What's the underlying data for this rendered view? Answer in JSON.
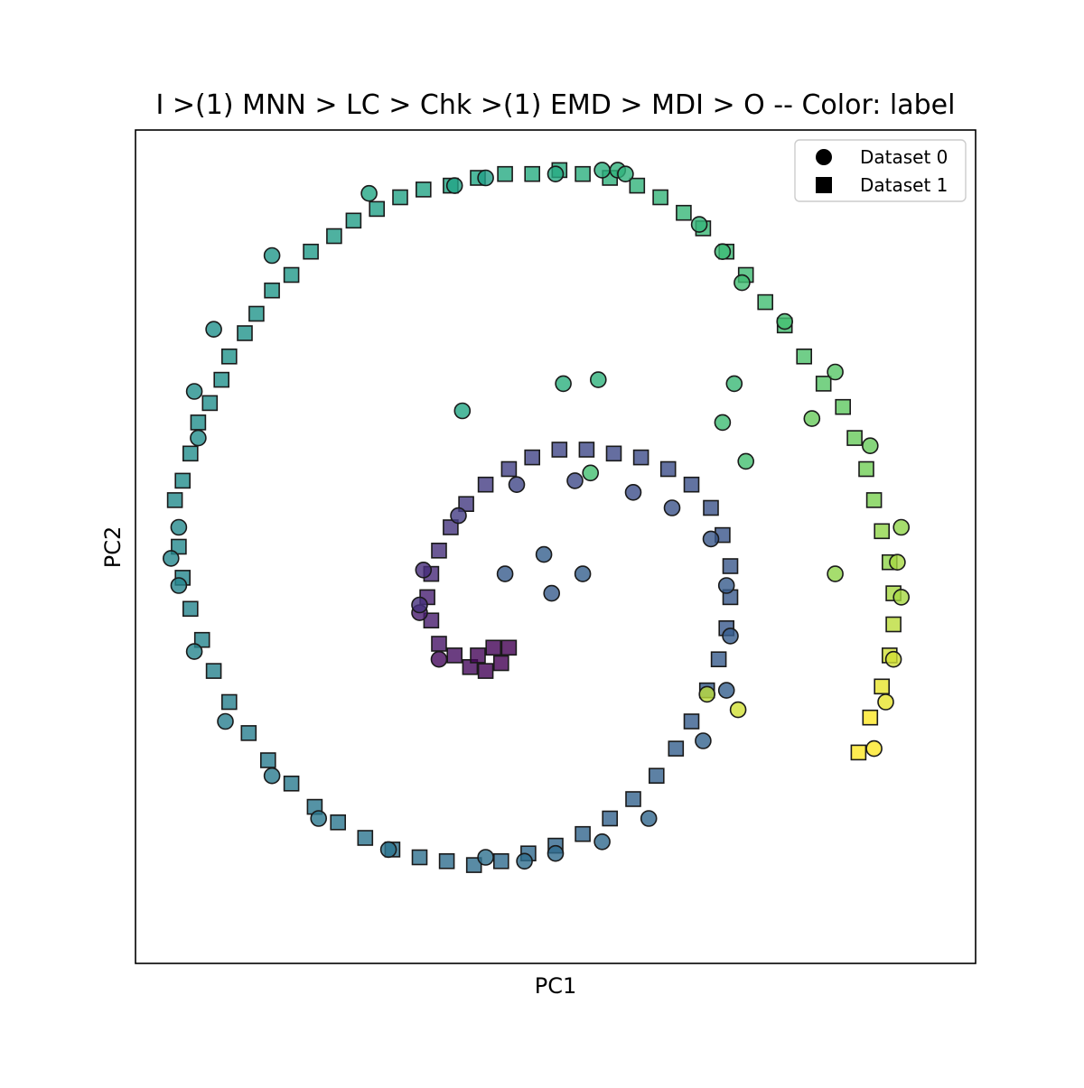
{
  "chart_data": {
    "type": "scatter",
    "title": "I >(1) MNN > LC > Chk >(1) EMD > MDI > O -- Color: label",
    "xlabel": "PC1",
    "ylabel": "PC2",
    "xlim": [
      -1.0,
      1.0
    ],
    "ylim": [
      -1.0,
      1.0
    ],
    "grid": false,
    "ticks": "none",
    "legend_position": "top-right",
    "colormap": "viridis",
    "color_by": "label",
    "marker_edge_color": "#1a1a1a",
    "marker_alpha": 0.8,
    "series": [
      {
        "name": "Dataset 0",
        "marker": "circle",
        "points": [
          [
            -0.48,
            0.91,
            0.74
          ],
          [
            -0.26,
            0.93,
            0.72
          ],
          [
            -0.18,
            0.95,
            0.7
          ],
          [
            0.0,
            0.96,
            0.76
          ],
          [
            0.12,
            0.97,
            0.79
          ],
          [
            0.16,
            0.97,
            0.8
          ],
          [
            0.18,
            0.96,
            0.8
          ],
          [
            0.37,
            0.83,
            0.82
          ],
          [
            0.43,
            0.76,
            0.85
          ],
          [
            0.48,
            0.68,
            0.87
          ],
          [
            0.59,
            0.58,
            0.88
          ],
          [
            0.72,
            0.45,
            0.9
          ],
          [
            0.81,
            0.26,
            0.92
          ],
          [
            0.89,
            0.05,
            0.95
          ],
          [
            0.88,
            -0.04,
            0.96
          ],
          [
            0.89,
            -0.13,
            0.96
          ],
          [
            0.87,
            -0.29,
            0.98
          ],
          [
            0.85,
            -0.4,
            0.99
          ],
          [
            0.82,
            -0.52,
            1.0
          ],
          [
            -0.73,
            0.75,
            0.66
          ],
          [
            -0.88,
            0.56,
            0.63
          ],
          [
            -0.93,
            0.4,
            0.62
          ],
          [
            -0.92,
            0.28,
            0.61
          ],
          [
            -0.97,
            0.05,
            0.59
          ],
          [
            -0.99,
            -0.03,
            0.58
          ],
          [
            -0.97,
            -0.1,
            0.57
          ],
          [
            -0.93,
            -0.27,
            0.56
          ],
          [
            -0.85,
            -0.45,
            0.53
          ],
          [
            -0.73,
            -0.59,
            0.51
          ],
          [
            -0.61,
            -0.7,
            0.5
          ],
          [
            -0.43,
            -0.78,
            0.48
          ],
          [
            -0.18,
            -0.8,
            0.46
          ],
          [
            -0.08,
            -0.81,
            0.45
          ],
          [
            0.0,
            -0.79,
            0.44
          ],
          [
            0.12,
            -0.76,
            0.43
          ],
          [
            0.24,
            -0.7,
            0.42
          ],
          [
            0.38,
            -0.5,
            0.4
          ],
          [
            0.44,
            -0.37,
            0.38
          ],
          [
            0.45,
            -0.23,
            0.37
          ],
          [
            0.44,
            -0.1,
            0.36
          ],
          [
            0.4,
            0.02,
            0.34
          ],
          [
            0.3,
            0.1,
            0.32
          ],
          [
            0.2,
            0.14,
            0.3
          ],
          [
            0.05,
            0.17,
            0.28
          ],
          [
            -0.1,
            0.16,
            0.26
          ],
          [
            -0.25,
            0.08,
            0.22
          ],
          [
            -0.34,
            -0.06,
            0.16
          ],
          [
            -0.35,
            -0.17,
            0.1
          ],
          [
            -0.3,
            -0.29,
            0.03
          ],
          [
            -0.24,
            0.35,
            0.74
          ],
          [
            0.02,
            0.42,
            0.79
          ],
          [
            0.11,
            0.43,
            0.8
          ],
          [
            0.46,
            0.42,
            0.84
          ],
          [
            0.43,
            0.32,
            0.86
          ],
          [
            0.49,
            0.22,
            0.88
          ],
          [
            0.66,
            0.33,
            0.92
          ],
          [
            0.72,
            -0.07,
            0.95
          ],
          [
            0.39,
            -0.38,
            0.97
          ],
          [
            0.47,
            -0.42,
            0.98
          ],
          [
            0.09,
            0.19,
            0.88
          ],
          [
            -0.13,
            -0.07,
            0.36
          ],
          [
            -0.03,
            -0.02,
            0.38
          ],
          [
            -0.01,
            -0.12,
            0.36
          ],
          [
            0.07,
            -0.07,
            0.38
          ],
          [
            -0.35,
            -0.15,
            0.18
          ]
        ]
      },
      {
        "name": "Dataset 1",
        "marker": "square",
        "points": [
          [
            -0.98,
            0.12,
            0.6
          ],
          [
            -0.96,
            0.17,
            0.61
          ],
          [
            -0.94,
            0.24,
            0.61
          ],
          [
            -0.92,
            0.32,
            0.62
          ],
          [
            -0.89,
            0.37,
            0.62
          ],
          [
            -0.86,
            0.43,
            0.63
          ],
          [
            -0.84,
            0.49,
            0.64
          ],
          [
            -0.8,
            0.55,
            0.64
          ],
          [
            -0.77,
            0.6,
            0.65
          ],
          [
            -0.73,
            0.66,
            0.66
          ],
          [
            -0.68,
            0.7,
            0.67
          ],
          [
            -0.63,
            0.76,
            0.68
          ],
          [
            -0.57,
            0.8,
            0.69
          ],
          [
            -0.52,
            0.84,
            0.7
          ],
          [
            -0.46,
            0.87,
            0.71
          ],
          [
            -0.4,
            0.9,
            0.72
          ],
          [
            -0.34,
            0.92,
            0.73
          ],
          [
            -0.27,
            0.93,
            0.74
          ],
          [
            -0.2,
            0.95,
            0.75
          ],
          [
            -0.13,
            0.96,
            0.76
          ],
          [
            -0.06,
            0.96,
            0.77
          ],
          [
            0.01,
            0.97,
            0.78
          ],
          [
            0.07,
            0.96,
            0.79
          ],
          [
            0.14,
            0.95,
            0.8
          ],
          [
            0.21,
            0.93,
            0.81
          ],
          [
            0.27,
            0.9,
            0.82
          ],
          [
            0.33,
            0.86,
            0.83
          ],
          [
            0.38,
            0.82,
            0.84
          ],
          [
            0.44,
            0.76,
            0.85
          ],
          [
            0.49,
            0.7,
            0.86
          ],
          [
            0.54,
            0.63,
            0.87
          ],
          [
            0.59,
            0.57,
            0.88
          ],
          [
            0.64,
            0.49,
            0.89
          ],
          [
            0.69,
            0.42,
            0.9
          ],
          [
            0.74,
            0.36,
            0.91
          ],
          [
            0.77,
            0.28,
            0.92
          ],
          [
            0.8,
            0.2,
            0.93
          ],
          [
            0.82,
            0.12,
            0.94
          ],
          [
            0.84,
            0.04,
            0.95
          ],
          [
            0.86,
            -0.04,
            0.95
          ],
          [
            0.87,
            -0.12,
            0.96
          ],
          [
            0.87,
            -0.2,
            0.97
          ],
          [
            0.86,
            -0.28,
            0.98
          ],
          [
            0.84,
            -0.36,
            0.99
          ],
          [
            0.81,
            -0.44,
            1.0
          ],
          [
            0.78,
            -0.53,
            1.0
          ],
          [
            -0.97,
            0.0,
            0.59
          ],
          [
            -0.96,
            -0.08,
            0.58
          ],
          [
            -0.94,
            -0.16,
            0.57
          ],
          [
            -0.91,
            -0.24,
            0.56
          ],
          [
            -0.88,
            -0.32,
            0.55
          ],
          [
            -0.84,
            -0.4,
            0.54
          ],
          [
            -0.79,
            -0.48,
            0.53
          ],
          [
            -0.74,
            -0.55,
            0.52
          ],
          [
            -0.68,
            -0.61,
            0.51
          ],
          [
            -0.62,
            -0.67,
            0.5
          ],
          [
            -0.56,
            -0.71,
            0.49
          ],
          [
            -0.49,
            -0.75,
            0.48
          ],
          [
            -0.42,
            -0.78,
            0.47
          ],
          [
            -0.35,
            -0.8,
            0.46
          ],
          [
            -0.28,
            -0.81,
            0.45
          ],
          [
            -0.21,
            -0.82,
            0.45
          ],
          [
            -0.14,
            -0.81,
            0.44
          ],
          [
            -0.07,
            -0.79,
            0.43
          ],
          [
            0.0,
            -0.77,
            0.42
          ],
          [
            0.07,
            -0.74,
            0.41
          ],
          [
            0.14,
            -0.7,
            0.4
          ],
          [
            0.2,
            -0.65,
            0.4
          ],
          [
            0.26,
            -0.59,
            0.39
          ],
          [
            0.31,
            -0.52,
            0.38
          ],
          [
            0.35,
            -0.45,
            0.37
          ],
          [
            0.39,
            -0.37,
            0.37
          ],
          [
            0.42,
            -0.29,
            0.36
          ],
          [
            0.44,
            -0.21,
            0.35
          ],
          [
            0.45,
            -0.13,
            0.35
          ],
          [
            0.45,
            -0.05,
            0.34
          ],
          [
            0.43,
            0.03,
            0.33
          ],
          [
            0.4,
            0.1,
            0.32
          ],
          [
            0.35,
            0.16,
            0.31
          ],
          [
            0.29,
            0.2,
            0.3
          ],
          [
            0.22,
            0.23,
            0.29
          ],
          [
            0.15,
            0.24,
            0.28
          ],
          [
            0.08,
            0.25,
            0.27
          ],
          [
            0.01,
            0.25,
            0.26
          ],
          [
            -0.06,
            0.23,
            0.25
          ],
          [
            -0.12,
            0.2,
            0.24
          ],
          [
            -0.18,
            0.16,
            0.22
          ],
          [
            -0.23,
            0.11,
            0.21
          ],
          [
            -0.27,
            0.05,
            0.19
          ],
          [
            -0.3,
            -0.01,
            0.17
          ],
          [
            -0.32,
            -0.07,
            0.15
          ],
          [
            -0.33,
            -0.13,
            0.12
          ],
          [
            -0.32,
            -0.19,
            0.1
          ],
          [
            -0.3,
            -0.25,
            0.07
          ],
          [
            -0.26,
            -0.28,
            0.05
          ],
          [
            -0.22,
            -0.31,
            0.03
          ],
          [
            -0.18,
            -0.32,
            0.01
          ],
          [
            -0.14,
            -0.3,
            0.0
          ],
          [
            -0.12,
            -0.26,
            0.0
          ],
          [
            -0.2,
            -0.28,
            0.02
          ],
          [
            -0.16,
            -0.26,
            0.01
          ]
        ]
      }
    ]
  },
  "legend": {
    "items": [
      {
        "label": "Dataset 0",
        "marker": "circle"
      },
      {
        "label": "Dataset 1",
        "marker": "square"
      }
    ]
  }
}
